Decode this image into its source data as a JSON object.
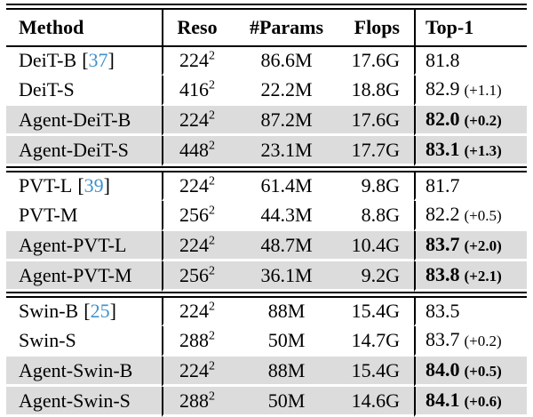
{
  "table": {
    "citation_color": "#3E92CC",
    "shaded_row_color": "#DCDCDC",
    "ref_open": "[",
    "ref_close": "]",
    "columns": [
      {
        "key": "method",
        "label": "Method"
      },
      {
        "key": "reso",
        "label": "Reso"
      },
      {
        "key": "params",
        "label": "#Params"
      },
      {
        "key": "flops",
        "label": "Flops"
      },
      {
        "key": "top1",
        "label": "Top-1"
      }
    ],
    "groups": [
      {
        "name": "deit",
        "rows": [
          {
            "method": "DeiT-B",
            "ref": "37",
            "reso": "224",
            "reso_exp": "2",
            "params": "86.6M",
            "flops": "17.6G",
            "top1": "81.8",
            "delta": "",
            "bold": false,
            "shaded": false
          },
          {
            "method": "DeiT-S",
            "ref": "",
            "reso": "416",
            "reso_exp": "2",
            "params": "22.2M",
            "flops": "18.8G",
            "top1": "82.9",
            "delta": "(+1.1)",
            "bold": false,
            "shaded": false
          },
          {
            "method": "Agent-DeiT-B",
            "ref": "",
            "reso": "224",
            "reso_exp": "2",
            "params": "87.2M",
            "flops": "17.6G",
            "top1": "82.0",
            "delta": "(+0.2)",
            "bold": true,
            "shaded": true
          },
          {
            "method": "Agent-DeiT-S",
            "ref": "",
            "reso": "448",
            "reso_exp": "2",
            "params": "23.1M",
            "flops": "17.7G",
            "top1": "83.1",
            "delta": "(+1.3)",
            "bold": true,
            "shaded": true
          }
        ]
      },
      {
        "name": "pvt",
        "rows": [
          {
            "method": "PVT-L",
            "ref": "39",
            "reso": "224",
            "reso_exp": "2",
            "params": "61.4M",
            "flops": "9.8G",
            "top1": "81.7",
            "delta": "",
            "bold": false,
            "shaded": false
          },
          {
            "method": "PVT-M",
            "ref": "",
            "reso": "256",
            "reso_exp": "2",
            "params": "44.3M",
            "flops": "8.8G",
            "top1": "82.2",
            "delta": "(+0.5)",
            "bold": false,
            "shaded": false
          },
          {
            "method": "Agent-PVT-L",
            "ref": "",
            "reso": "224",
            "reso_exp": "2",
            "params": "48.7M",
            "flops": "10.4G",
            "top1": "83.7",
            "delta": "(+2.0)",
            "bold": true,
            "shaded": true
          },
          {
            "method": "Agent-PVT-M",
            "ref": "",
            "reso": "256",
            "reso_exp": "2",
            "params": "36.1M",
            "flops": "9.2G",
            "top1": "83.8",
            "delta": "(+2.1)",
            "bold": true,
            "shaded": true
          }
        ]
      },
      {
        "name": "swin",
        "rows": [
          {
            "method": "Swin-B",
            "ref": "25",
            "reso": "224",
            "reso_exp": "2",
            "params": "88M",
            "flops": "15.4G",
            "top1": "83.5",
            "delta": "",
            "bold": false,
            "shaded": false
          },
          {
            "method": "Swin-S",
            "ref": "",
            "reso": "288",
            "reso_exp": "2",
            "params": "50M",
            "flops": "14.7G",
            "top1": "83.7",
            "delta": "(+0.2)",
            "bold": false,
            "shaded": false
          },
          {
            "method": "Agent-Swin-B",
            "ref": "",
            "reso": "224",
            "reso_exp": "2",
            "params": "88M",
            "flops": "15.4G",
            "top1": "84.0",
            "delta": "(+0.5)",
            "bold": true,
            "shaded": true
          },
          {
            "method": "Agent-Swin-S",
            "ref": "",
            "reso": "288",
            "reso_exp": "2",
            "params": "50M",
            "flops": "14.6G",
            "top1": "84.1",
            "delta": "(+0.6)",
            "bold": true,
            "shaded": true
          }
        ]
      }
    ]
  }
}
